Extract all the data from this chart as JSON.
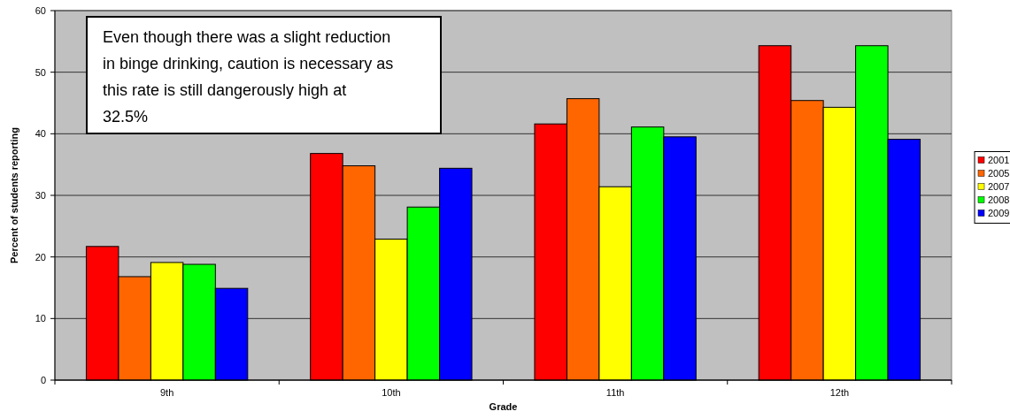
{
  "chart_data": {
    "type": "bar",
    "xlabel": "Grade",
    "ylabel": "Percent of students  reporting",
    "categories": [
      "9th",
      "10th",
      "11th",
      "12th"
    ],
    "series": [
      {
        "name": "2001",
        "color": "#ff0000",
        "values": [
          21.7,
          36.8,
          41.6,
          54.3
        ]
      },
      {
        "name": "2005",
        "color": "#ff6600",
        "values": [
          16.8,
          34.8,
          45.7,
          45.4
        ]
      },
      {
        "name": "2007",
        "color": "#ffff00",
        "values": [
          19.1,
          22.9,
          31.4,
          44.3
        ]
      },
      {
        "name": "2008",
        "color": "#00ff00",
        "values": [
          18.8,
          28.1,
          41.1,
          54.3
        ]
      },
      {
        "name": "2009",
        "color": "#0000ff",
        "values": [
          14.9,
          34.4,
          39.5,
          39.1
        ]
      }
    ],
    "ylim": [
      0,
      60
    ],
    "yticks": [
      0,
      10,
      20,
      30,
      40,
      50,
      60
    ],
    "grid": "y",
    "legend": "right",
    "annotations": [
      "Even though there was a slight reduction in binge drinking, caution is necessary as this rate is still dangerously high at 32.5%"
    ]
  }
}
